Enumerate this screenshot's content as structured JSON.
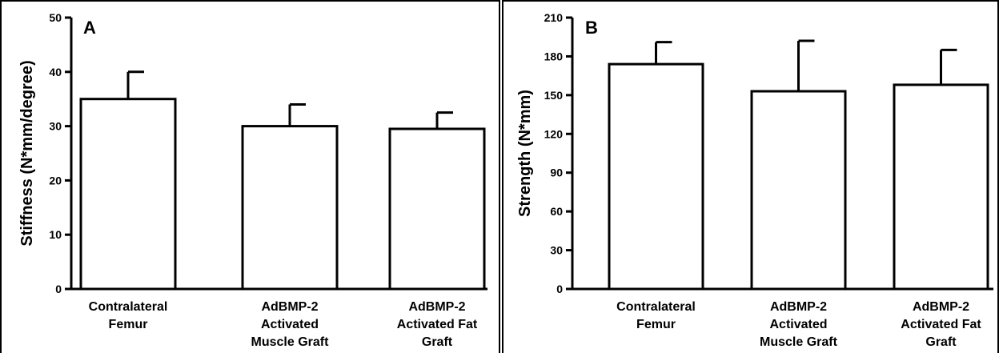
{
  "chart_data": [
    {
      "type": "bar",
      "panel_label": "A",
      "categories": [
        [
          "Contralateral",
          "Femur"
        ],
        [
          "AdBMP-2",
          "Activated",
          "Muscle Graft"
        ],
        [
          "AdBMP-2",
          "Activated Fat",
          "Graft"
        ]
      ],
      "values": [
        35,
        30,
        29.5
      ],
      "errors": [
        5,
        4,
        3
      ],
      "ylabel": "Stiffness (N*mm/degree)",
      "ylim": [
        0,
        50
      ],
      "yticks": [
        0,
        10,
        20,
        30,
        40,
        50
      ],
      "grid": false
    },
    {
      "type": "bar",
      "panel_label": "B",
      "categories": [
        [
          "Contralateral",
          "Femur"
        ],
        [
          "AdBMP-2",
          "Activated",
          "Muscle Graft"
        ],
        [
          "AdBMP-2",
          "Activated Fat",
          "Graft"
        ]
      ],
      "values": [
        174,
        153,
        158
      ],
      "errors": [
        17,
        39,
        27
      ],
      "ylabel": "Strength (N*mm)",
      "ylim": [
        0,
        210
      ],
      "yticks": [
        0,
        30,
        60,
        90,
        120,
        150,
        180,
        210
      ],
      "grid": false
    }
  ]
}
